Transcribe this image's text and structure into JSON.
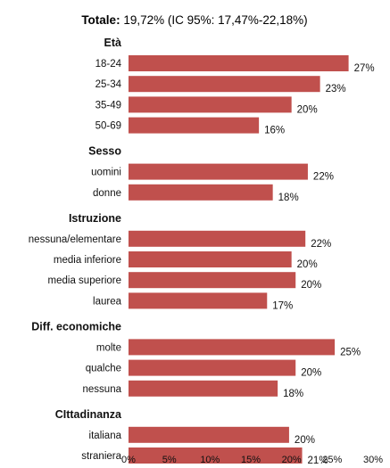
{
  "header": {
    "title_bold": "Totale:",
    "title_rest": " 19,72% (IC 95%: 17,47%-22,18%)"
  },
  "colors": {
    "bar": "#c0504d",
    "axis": "#888888",
    "text": "#111111"
  },
  "chart_data": {
    "type": "bar",
    "orientation": "horizontal",
    "title": "Totale: 19,72% (IC 95%: 17,47%-22,18%)",
    "xlim": [
      0,
      30
    ],
    "x_ticks": [
      "0%",
      "5%",
      "10%",
      "15%",
      "20%",
      "25%",
      "30%"
    ],
    "grid": false,
    "groups": [
      {
        "name": "Età",
        "categories": [
          {
            "label": "18-24",
            "value": 27,
            "value_label": "27%"
          },
          {
            "label": "25-34",
            "value": 23.5,
            "value_label": "23%"
          },
          {
            "label": "35-49",
            "value": 20,
            "value_label": "20%"
          },
          {
            "label": "50-69",
            "value": 16,
            "value_label": "16%"
          }
        ]
      },
      {
        "name": "Sesso",
        "categories": [
          {
            "label": "uomini",
            "value": 22,
            "value_label": "22%"
          },
          {
            "label": "donne",
            "value": 17.7,
            "value_label": "18%"
          }
        ]
      },
      {
        "name": "Istruzione",
        "categories": [
          {
            "label": "nessuna/elementare",
            "value": 21.7,
            "value_label": "22%"
          },
          {
            "label": "media inferiore",
            "value": 20,
            "value_label": "20%"
          },
          {
            "label": "media superiore",
            "value": 20.5,
            "value_label": "20%"
          },
          {
            "label": "laurea",
            "value": 17,
            "value_label": "17%"
          }
        ]
      },
      {
        "name": "Diff. economiche",
        "categories": [
          {
            "label": "molte",
            "value": 25.3,
            "value_label": "25%"
          },
          {
            "label": "qualche",
            "value": 20.5,
            "value_label": "20%"
          },
          {
            "label": "nessuna",
            "value": 18.3,
            "value_label": "18%"
          }
        ]
      },
      {
        "name": "CIttadinanza",
        "categories": [
          {
            "label": "italiana",
            "value": 19.7,
            "value_label": "20%"
          },
          {
            "label": "straniera",
            "value": 21.3,
            "value_label": "21%"
          }
        ]
      }
    ]
  }
}
